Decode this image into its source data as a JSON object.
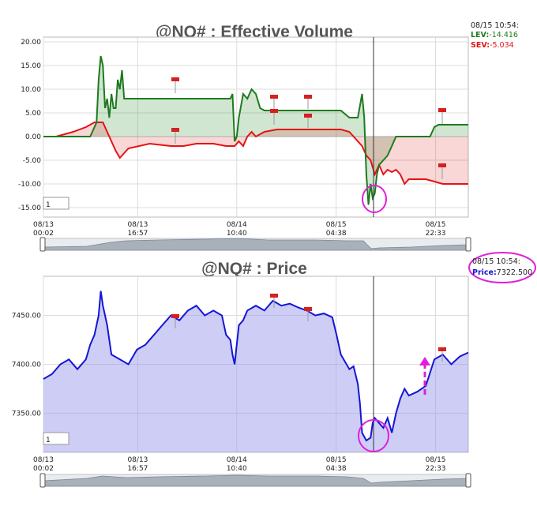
{
  "chart_data": [
    {
      "type": "line",
      "title": "@NQ# : Effective Volume",
      "x_tick_labels": [
        "08/13 00:02",
        "08/13 16:57",
        "08/14 10:40",
        "08/15 04:38",
        "08/15 22:33"
      ],
      "x_tick_positions": [
        0,
        0.222,
        0.455,
        0.689,
        0.923
      ],
      "ylim": [
        -17,
        21
      ],
      "y_ticks": [
        20,
        15,
        10,
        5,
        0,
        -5,
        -10,
        -15
      ],
      "y_tick_labels": [
        "20.00",
        "15.00",
        "10.00",
        "5.00",
        "0.00",
        "-5.00",
        "-10.00",
        "-15.00"
      ],
      "grid": true,
      "readout": {
        "time": "08/15 10:54:",
        "lev_label": "LEV:",
        "lev_value": "-14.416",
        "sev_label": "SEV:",
        "sev_value": "-5.034"
      },
      "interval_box": "1",
      "series": [
        {
          "name": "LEV",
          "color": "#1e7a1e",
          "x": [
            0,
            0.04,
            0.08,
            0.1,
            0.11,
            0.125,
            0.13,
            0.135,
            0.14,
            0.145,
            0.15,
            0.155,
            0.16,
            0.165,
            0.17,
            0.175,
            0.18,
            0.185,
            0.19,
            0.195,
            0.2,
            0.22,
            0.3,
            0.4,
            0.43,
            0.44,
            0.445,
            0.45,
            0.455,
            0.46,
            0.47,
            0.48,
            0.49,
            0.5,
            0.51,
            0.52,
            0.53,
            0.56,
            0.6,
            0.65,
            0.7,
            0.72,
            0.74,
            0.75,
            0.755,
            0.76,
            0.765,
            0.77,
            0.775,
            0.78,
            0.785,
            0.79,
            0.8,
            0.81,
            0.82,
            0.83,
            0.84,
            0.85,
            0.86,
            0.88,
            0.9,
            0.91,
            0.92,
            0.93,
            0.95,
            0.97,
            1.0
          ],
          "y": [
            0,
            0,
            0,
            0,
            0,
            3,
            12,
            17,
            15,
            6,
            8,
            4,
            9,
            6,
            6,
            12,
            10,
            14,
            8,
            8,
            8,
            8,
            8,
            8,
            8,
            8,
            9,
            -1,
            0,
            4,
            9,
            8,
            10,
            9,
            6,
            5.5,
            5.5,
            5.5,
            5.5,
            5.5,
            5.5,
            4,
            4,
            9,
            4,
            -8,
            -14.4,
            -10,
            -13,
            -12,
            -8,
            -6,
            -5,
            -4,
            -2,
            0,
            0,
            0,
            0,
            0,
            0,
            0,
            2,
            2.5,
            2.5,
            2.5,
            2.5
          ]
        },
        {
          "name": "SEV",
          "color": "#e21414",
          "x": [
            0,
            0.03,
            0.07,
            0.1,
            0.12,
            0.14,
            0.16,
            0.17,
            0.18,
            0.2,
            0.25,
            0.3,
            0.33,
            0.36,
            0.4,
            0.43,
            0.45,
            0.46,
            0.47,
            0.48,
            0.49,
            0.5,
            0.52,
            0.55,
            0.6,
            0.65,
            0.68,
            0.7,
            0.72,
            0.74,
            0.75,
            0.76,
            0.77,
            0.78,
            0.79,
            0.8,
            0.81,
            0.82,
            0.83,
            0.84,
            0.85,
            0.86,
            0.87,
            0.88,
            0.9,
            0.92,
            0.94,
            0.96,
            1.0
          ],
          "y": [
            0,
            0,
            1,
            2,
            3,
            3,
            -1,
            -3,
            -4.5,
            -2.5,
            -1.5,
            -2,
            -2,
            -1.5,
            -1.5,
            -2,
            -2,
            -1,
            -2,
            0,
            1,
            0,
            1,
            1.5,
            1.5,
            1.5,
            1.5,
            1.5,
            1,
            -1,
            -2,
            -4,
            -5,
            -8,
            -6,
            -8,
            -7,
            -7.5,
            -7,
            -8,
            -10,
            -9,
            -9,
            -9,
            -9,
            -9.5,
            -10,
            -10,
            -10
          ]
        }
      ]
    },
    {
      "type": "area",
      "title": "@NQ# : Price",
      "x_tick_labels": [
        "08/13 00:02",
        "08/13 16:57",
        "08/14 10:40",
        "08/15 04:38",
        "08/15 22:33"
      ],
      "x_tick_positions": [
        0,
        0.222,
        0.455,
        0.689,
        0.923
      ],
      "ylim": [
        7310,
        7490
      ],
      "y_ticks": [
        7450,
        7400,
        7350
      ],
      "y_tick_labels": [
        "7450.00",
        "7400.00",
        "7350.00"
      ],
      "grid": true,
      "readout": {
        "time": "08/15 10:54:",
        "price_label": "Price:",
        "price_value": "7322.500"
      },
      "interval_box": "1",
      "series": [
        {
          "name": "Price",
          "color": "#1515d5",
          "x": [
            0,
            0.02,
            0.04,
            0.06,
            0.08,
            0.1,
            0.11,
            0.12,
            0.13,
            0.135,
            0.14,
            0.15,
            0.16,
            0.18,
            0.2,
            0.22,
            0.24,
            0.26,
            0.28,
            0.3,
            0.32,
            0.34,
            0.36,
            0.38,
            0.4,
            0.42,
            0.43,
            0.44,
            0.445,
            0.45,
            0.455,
            0.46,
            0.47,
            0.48,
            0.5,
            0.52,
            0.54,
            0.56,
            0.58,
            0.6,
            0.62,
            0.64,
            0.66,
            0.68,
            0.69,
            0.7,
            0.72,
            0.73,
            0.74,
            0.745,
            0.75,
            0.76,
            0.77,
            0.775,
            0.78,
            0.79,
            0.8,
            0.81,
            0.82,
            0.83,
            0.84,
            0.85,
            0.86,
            0.87,
            0.88,
            0.9,
            0.92,
            0.94,
            0.96,
            0.98,
            1.0
          ],
          "y": [
            7385,
            7390,
            7400,
            7405,
            7395,
            7405,
            7420,
            7430,
            7450,
            7475,
            7460,
            7440,
            7410,
            7405,
            7400,
            7415,
            7420,
            7430,
            7440,
            7450,
            7445,
            7455,
            7460,
            7450,
            7455,
            7450,
            7430,
            7425,
            7410,
            7400,
            7420,
            7440,
            7445,
            7455,
            7460,
            7455,
            7465,
            7460,
            7462,
            7458,
            7455,
            7450,
            7452,
            7448,
            7430,
            7410,
            7395,
            7398,
            7380,
            7360,
            7330,
            7322,
            7325,
            7340,
            7345,
            7340,
            7335,
            7345,
            7330,
            7350,
            7365,
            7375,
            7368,
            7370,
            7372,
            7378,
            7405,
            7410,
            7400,
            7408,
            7412
          ]
        }
      ]
    }
  ]
}
